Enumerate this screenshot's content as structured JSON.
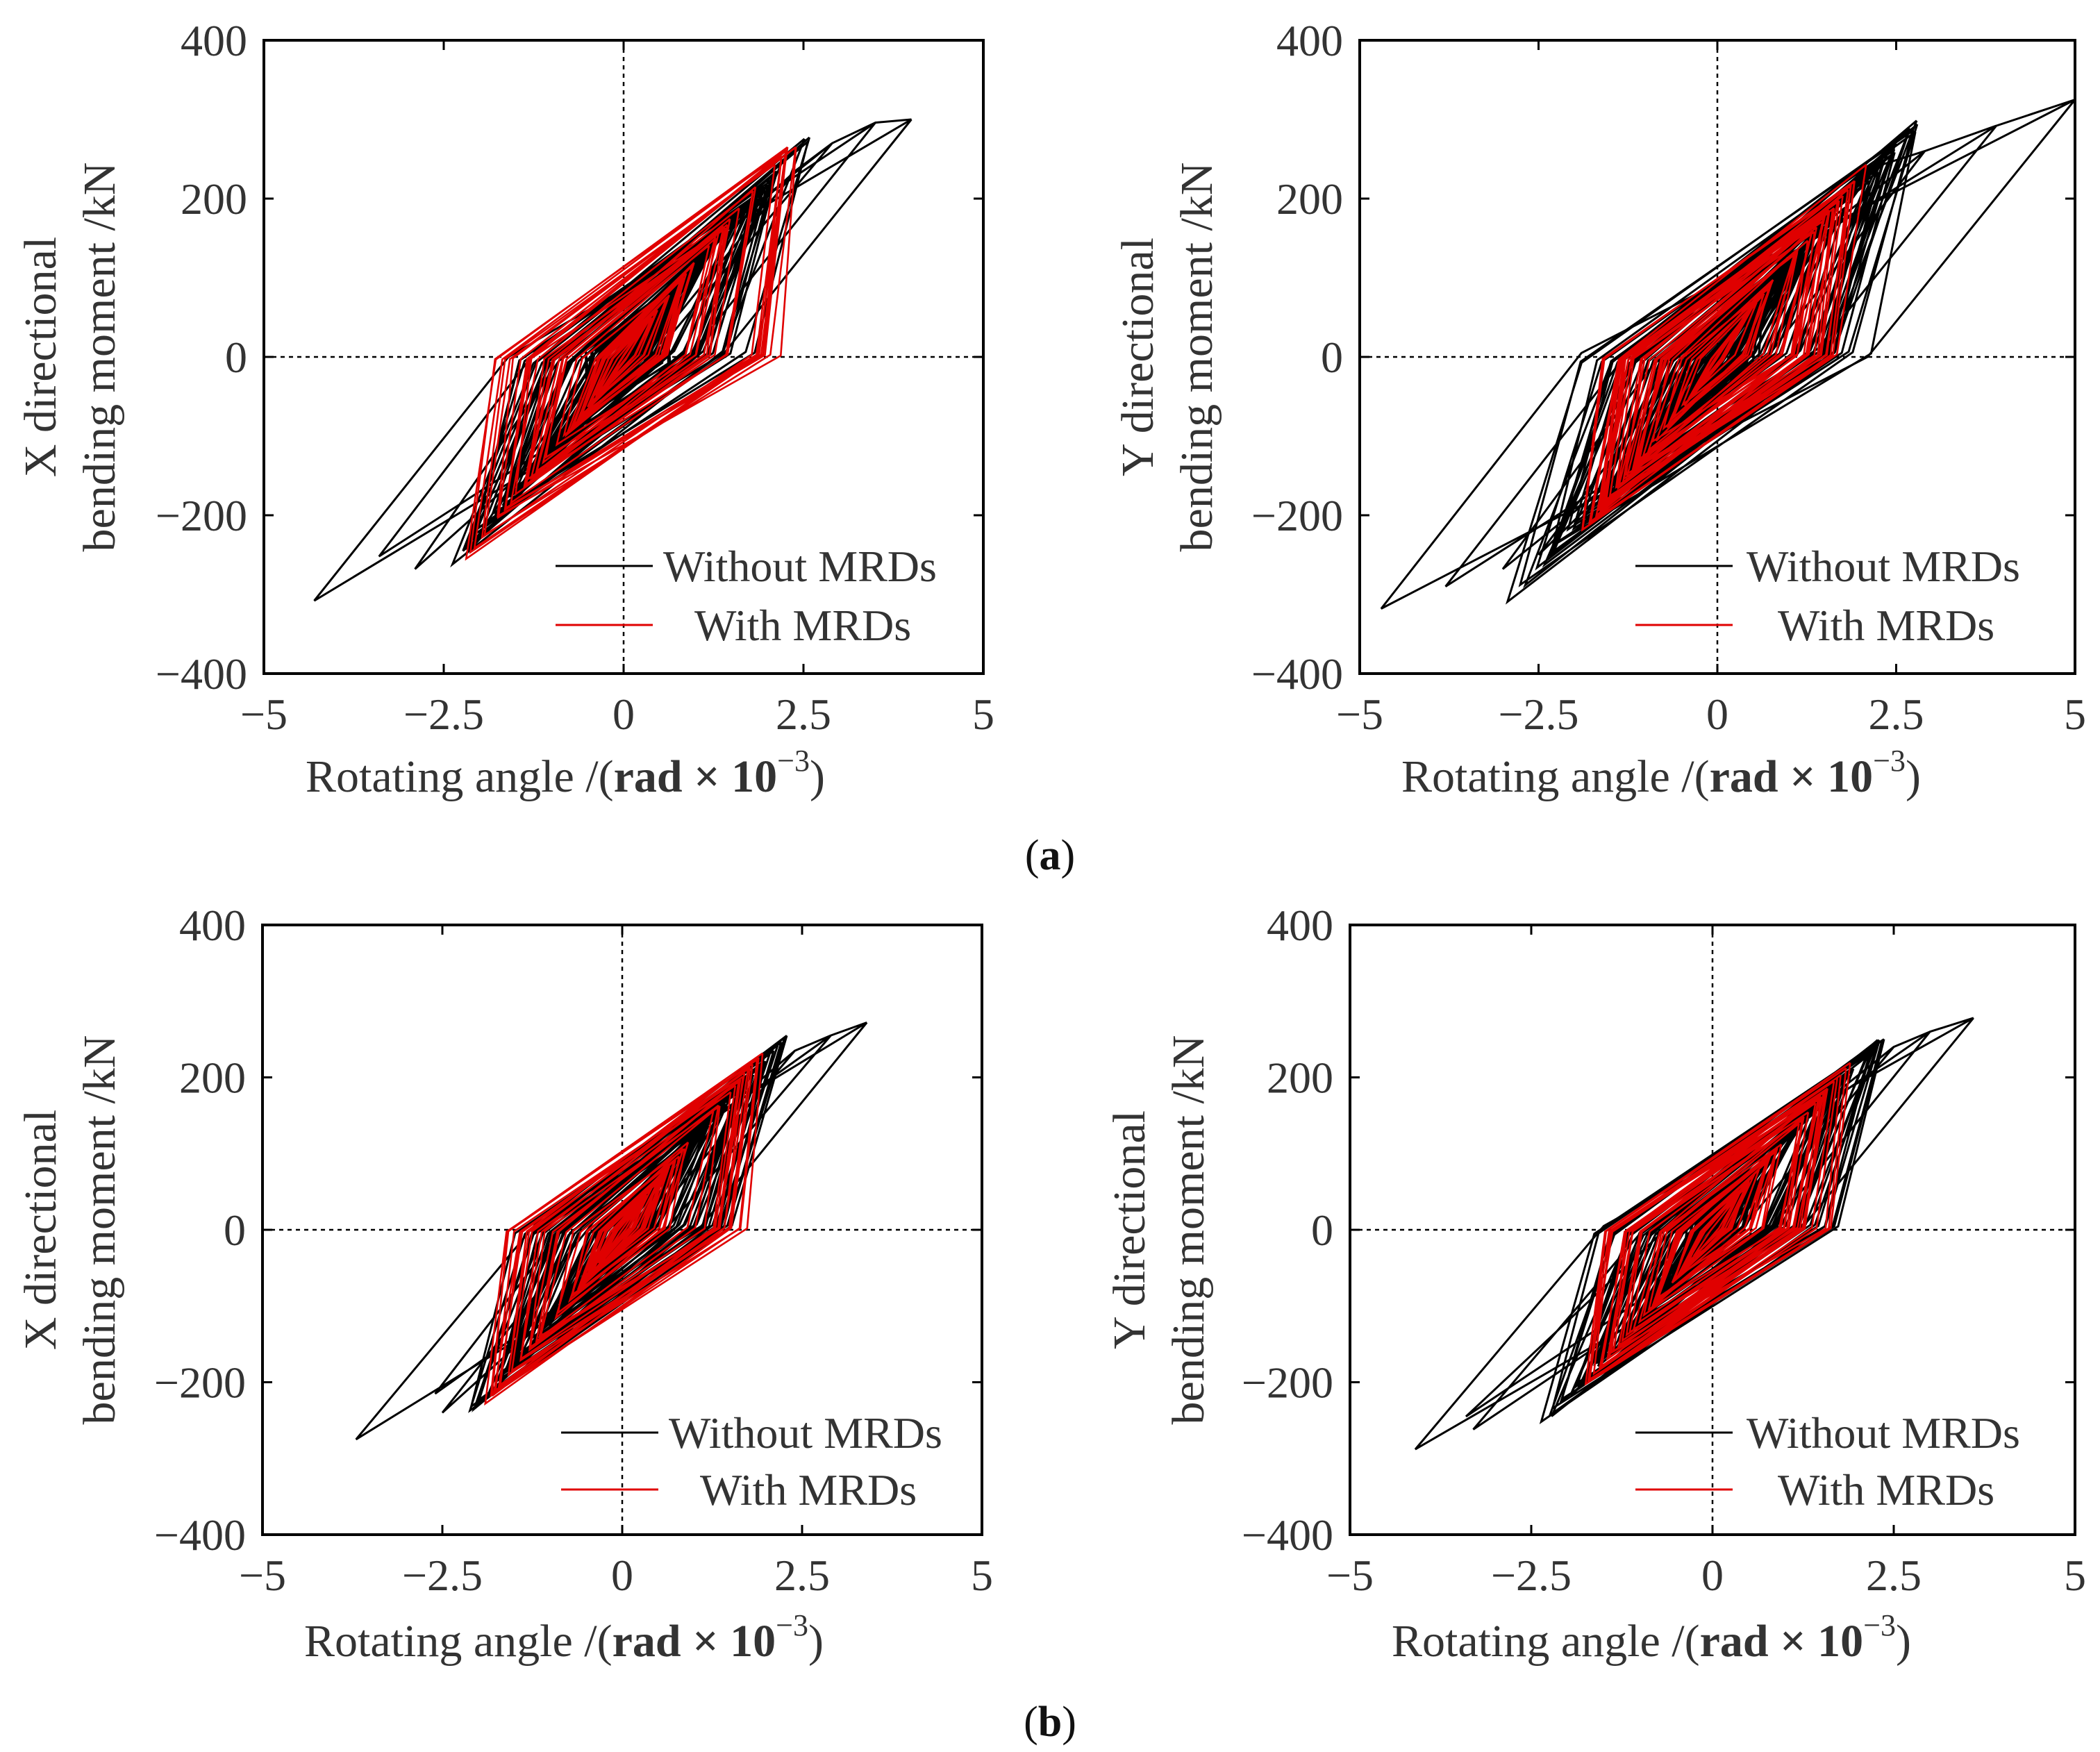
{
  "figure": {
    "caption_a": "a",
    "caption_b": "b"
  },
  "colors": {
    "without": "#000000",
    "with": "#e00000",
    "axis": "#000000"
  },
  "chart_data": [
    {
      "id": "a-x",
      "type": "line",
      "row": "a",
      "xlabel_main": "Rotating angle /(",
      "xlabel_unit": "rad × 10",
      "xlabel_exp": "−3",
      "xlabel_close": ")",
      "ylabel_line1": "X directional",
      "ylabel_line2": "bending moment /kN",
      "xlim": [
        -5,
        5
      ],
      "ylim": [
        -400,
        400
      ],
      "xticks": [
        "−5",
        "−2.5",
        "0",
        "2.5",
        "5"
      ],
      "yticks": [
        "400",
        "200",
        "0",
        "−200",
        "−400"
      ],
      "show_vline": true,
      "legend": [
        "Without MRDs",
        "With MRDs"
      ],
      "series": [
        {
          "name": "Without MRDs",
          "role": "outline",
          "points": [
            [
              4.0,
              300
            ],
            [
              1.4,
              5
            ],
            [
              -4.3,
              -308
            ],
            [
              -1.6,
              0
            ],
            [
              4.0,
              300
            ],
            [
              3.5,
              296
            ],
            [
              0.9,
              0
            ],
            [
              -3.4,
              -252
            ],
            [
              -1.2,
              10
            ],
            [
              3.5,
              296
            ],
            [
              2.9,
              270
            ],
            [
              0.4,
              0
            ],
            [
              -2.9,
              -268
            ],
            [
              -0.9,
              -5
            ],
            [
              2.9,
              270
            ],
            [
              2.4,
              236
            ],
            [
              0.1,
              -20
            ],
            [
              -2.2,
              -250
            ],
            [
              -0.3,
              10
            ],
            [
              2.4,
              236
            ]
          ]
        },
        {
          "name": "Without MRDs",
          "role": "core",
          "count": 60,
          "xamp": [
            0.5,
            2.6
          ],
          "slope": 100,
          "hw": 70,
          "seed": 11
        },
        {
          "name": "With MRDs",
          "role": "core",
          "count": 40,
          "xamp": [
            0.3,
            2.4
          ],
          "slope": 112,
          "hw": 28,
          "seed": 23,
          "ymax": 265
        }
      ]
    },
    {
      "id": "a-y",
      "type": "line",
      "row": "a",
      "xlabel_main": "Rotating angle /(",
      "xlabel_unit": "rad × 10",
      "xlabel_exp": "−3",
      "xlabel_close": ")",
      "ylabel_line1": "Y directional",
      "ylabel_line2": "bending moment /kN",
      "xlim": [
        -5,
        5
      ],
      "ylim": [
        -400,
        400
      ],
      "xticks": [
        "−5",
        "−2.5",
        "0",
        "2.5",
        "5"
      ],
      "yticks": [
        "400",
        "200",
        "0",
        "−200",
        "−400"
      ],
      "show_vline": true,
      "legend": [
        "Without MRDs",
        "With MRDs"
      ],
      "series": [
        {
          "name": "Without MRDs",
          "role": "outline",
          "points": [
            [
              5.0,
              325
            ],
            [
              2.1,
              0
            ],
            [
              -4.7,
              -318
            ],
            [
              -1.9,
              5
            ],
            [
              5.0,
              325
            ],
            [
              3.9,
              292
            ],
            [
              1.4,
              10
            ],
            [
              -3.8,
              -290
            ],
            [
              -1.3,
              0
            ],
            [
              3.9,
              292
            ],
            [
              2.9,
              260
            ],
            [
              0.7,
              0
            ],
            [
              -3.0,
              -268
            ],
            [
              -0.9,
              -10
            ],
            [
              2.9,
              260
            ],
            [
              2.2,
              240
            ],
            [
              0.2,
              -15
            ],
            [
              -2.5,
              -250
            ],
            [
              -0.3,
              12
            ],
            [
              2.2,
              240
            ]
          ]
        },
        {
          "name": "Without MRDs",
          "role": "core",
          "count": 60,
          "xamp": [
            0.5,
            2.8
          ],
          "slope": 98,
          "hw": 72,
          "seed": 37
        },
        {
          "name": "With MRDs",
          "role": "core",
          "count": 40,
          "xamp": [
            0.3,
            2.2
          ],
          "slope": 112,
          "hw": 30,
          "seed": 41,
          "ymax": 245
        }
      ]
    },
    {
      "id": "b-x",
      "type": "line",
      "row": "b",
      "xlabel_main": "Rotating angle /(",
      "xlabel_unit": "rad × 10",
      "xlabel_exp": "−3",
      "xlabel_close": ")",
      "ylabel_line1": "X directional",
      "ylabel_line2": "bending moment /kN",
      "xlim": [
        -5,
        5
      ],
      "ylim": [
        -400,
        400
      ],
      "xticks": [
        "−5",
        "−2.5",
        "0",
        "2.5",
        "5"
      ],
      "yticks": [
        "400",
        "200",
        "0",
        "−200",
        "−400"
      ],
      "show_vline": true,
      "legend": [
        "Without MRDs",
        "With MRDs"
      ],
      "series": [
        {
          "name": "Without MRDs",
          "role": "outline",
          "points": [
            [
              3.4,
              272
            ],
            [
              1.1,
              5
            ],
            [
              -3.7,
              -275
            ],
            [
              -1.2,
              8
            ],
            [
              3.4,
              272
            ],
            [
              2.9,
              255
            ],
            [
              0.6,
              0
            ],
            [
              -2.6,
              -215
            ],
            [
              -0.8,
              5
            ],
            [
              2.9,
              255
            ],
            [
              2.4,
              235
            ],
            [
              0.2,
              -10
            ],
            [
              -2.5,
              -240
            ],
            [
              -0.4,
              10
            ],
            [
              2.4,
              235
            ]
          ]
        },
        {
          "name": "Without MRDs",
          "role": "core",
          "count": 55,
          "xamp": [
            0.5,
            2.3
          ],
          "slope": 104,
          "hw": 62,
          "seed": 53
        },
        {
          "name": "With MRDs",
          "role": "core",
          "count": 38,
          "xamp": [
            0.3,
            2.0
          ],
          "slope": 116,
          "hw": 26,
          "seed": 59,
          "ymax": 235
        }
      ]
    },
    {
      "id": "b-y",
      "type": "line",
      "row": "b",
      "xlabel_main": "Rotating angle /(",
      "xlabel_unit": "rad × 10",
      "xlabel_exp": "−3",
      "xlabel_close": ")",
      "ylabel_line1": "Y directional",
      "ylabel_line2": "bending moment /kN",
      "xlim": [
        -5,
        5
      ],
      "ylim": [
        -400,
        400
      ],
      "xticks": [
        "−5",
        "−2.5",
        "0",
        "2.5",
        "5"
      ],
      "yticks": [
        "400",
        "200",
        "0",
        "−200",
        "−400"
      ],
      "show_vline": true,
      "legend": [
        "Without MRDs",
        "With MRDs"
      ],
      "series": [
        {
          "name": "Without MRDs",
          "role": "outline",
          "points": [
            [
              3.6,
              278
            ],
            [
              1.3,
              10
            ],
            [
              -4.1,
              -288
            ],
            [
              -1.5,
              5
            ],
            [
              3.6,
              278
            ],
            [
              3.0,
              260
            ],
            [
              0.8,
              0
            ],
            [
              -3.3,
              -262
            ],
            [
              -1.0,
              -5
            ],
            [
              3.0,
              260
            ],
            [
              2.5,
              240
            ],
            [
              0.3,
              -10
            ],
            [
              -3.4,
              -245
            ],
            [
              -0.6,
              5
            ],
            [
              2.5,
              240
            ]
          ]
        },
        {
          "name": "Without MRDs",
          "role": "core",
          "count": 55,
          "xamp": [
            0.5,
            2.4
          ],
          "slope": 100,
          "hw": 65,
          "seed": 71
        },
        {
          "name": "With MRDs",
          "role": "core",
          "count": 38,
          "xamp": [
            0.3,
            2.0
          ],
          "slope": 112,
          "hw": 25,
          "seed": 83,
          "ymax": 232
        }
      ]
    }
  ]
}
